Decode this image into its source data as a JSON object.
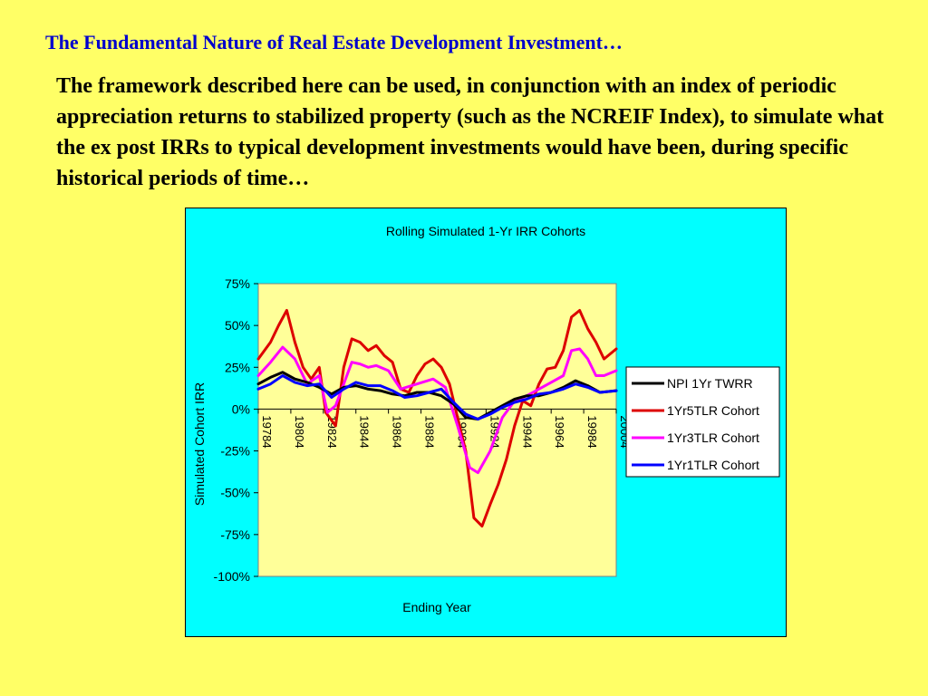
{
  "slide": {
    "title": "The Fundamental Nature of Real Estate Development Investment…",
    "body": "The framework described here can be used, in conjunction with an index of periodic appreciation returns to stabilized property (such as the NCREIF Index), to simulate what the ex post IRRs to typical development investments would have been, during specific historical periods of time…"
  },
  "colors": {
    "background": "#FFFF66",
    "title": "#0000CC",
    "chart_panel": "#00FFFF",
    "plot_area": "#FFFF99"
  },
  "chart_data": {
    "type": "line",
    "title": "Rolling Simulated 1-Yr IRR Cohorts",
    "xlabel": "Ending Year",
    "ylabel": "Simulated Cohort IRR",
    "ylim": [
      -1.0,
      0.75
    ],
    "y_ticks": [
      0.75,
      0.5,
      0.25,
      0.0,
      -0.25,
      -0.5,
      -0.75,
      -1.0
    ],
    "y_tick_labels": [
      "75%",
      "50%",
      "25%",
      "0%",
      "-25%",
      "-50%",
      "-75%",
      "-100%"
    ],
    "x_tick_labels": [
      "19784",
      "19804",
      "19824",
      "19844",
      "19864",
      "19884",
      "19904",
      "19924",
      "19944",
      "19964",
      "19984",
      "20004"
    ],
    "x_range": [
      1978.75,
      2000.75
    ],
    "legend_position": "right",
    "grid": false,
    "series": [
      {
        "name": "NPI 1Yr TWRR",
        "color": "#000000",
        "x": [
          1978.75,
          1979.5,
          1980.25,
          1981,
          1981.75,
          1982.5,
          1983.25,
          1984,
          1984.75,
          1985.5,
          1986.25,
          1987,
          1987.75,
          1988.5,
          1989.25,
          1990,
          1990.75,
          1991.5,
          1992.25,
          1993,
          1993.75,
          1994.5,
          1995.25,
          1996,
          1996.75,
          1997.5,
          1998.25,
          1999,
          1999.75,
          2000.75
        ],
        "y": [
          0.15,
          0.19,
          0.22,
          0.18,
          0.16,
          0.13,
          0.09,
          0.13,
          0.14,
          0.12,
          0.11,
          0.09,
          0.08,
          0.1,
          0.1,
          0.08,
          0.03,
          -0.05,
          -0.06,
          -0.02,
          0.02,
          0.06,
          0.08,
          0.08,
          0.1,
          0.13,
          0.17,
          0.14,
          0.1,
          0.11
        ]
      },
      {
        "name": "1Yr5TLR Cohort",
        "color": "#DD0000",
        "x": [
          1978.75,
          1979.5,
          1980,
          1980.5,
          1981,
          1981.5,
          1982,
          1982.5,
          1982.9,
          1983.5,
          1984,
          1984.5,
          1985,
          1985.5,
          1986,
          1986.5,
          1987,
          1987.5,
          1988,
          1988.5,
          1989,
          1989.5,
          1990,
          1990.5,
          1991,
          1991.5,
          1992,
          1992.5,
          1993,
          1993.5,
          1994,
          1994.5,
          1995,
          1995.5,
          1996,
          1996.5,
          1997,
          1997.5,
          1998,
          1998.5,
          1999,
          1999.5,
          2000,
          2000.75
        ],
        "y": [
          0.3,
          0.4,
          0.5,
          0.59,
          0.4,
          0.25,
          0.18,
          0.25,
          -0.02,
          -0.1,
          0.25,
          0.42,
          0.4,
          0.35,
          0.38,
          0.32,
          0.28,
          0.12,
          0.1,
          0.2,
          0.27,
          0.3,
          0.25,
          0.15,
          -0.05,
          -0.25,
          -0.65,
          -0.7,
          -0.57,
          -0.45,
          -0.3,
          -0.1,
          0.05,
          0.02,
          0.15,
          0.24,
          0.25,
          0.35,
          0.55,
          0.59,
          0.48,
          0.4,
          0.3,
          0.36
        ]
      },
      {
        "name": "1Yr3TLR Cohort",
        "color": "#FF00FF",
        "x": [
          1978.75,
          1979.5,
          1980.25,
          1981,
          1981.75,
          1982.5,
          1983,
          1983.5,
          1984,
          1984.5,
          1985,
          1985.5,
          1986,
          1986.75,
          1987.5,
          1988.5,
          1989.5,
          1990.25,
          1991,
          1991.75,
          1992.25,
          1993,
          1993.75,
          1994.5,
          1995.25,
          1996,
          1996.75,
          1997.5,
          1998,
          1998.5,
          1999,
          1999.5,
          2000,
          2000.75
        ],
        "y": [
          0.2,
          0.28,
          0.37,
          0.3,
          0.15,
          0.2,
          -0.02,
          0.02,
          0.15,
          0.28,
          0.27,
          0.25,
          0.26,
          0.23,
          0.12,
          0.15,
          0.18,
          0.13,
          -0.1,
          -0.35,
          -0.38,
          -0.25,
          -0.05,
          0.05,
          0.08,
          0.12,
          0.16,
          0.2,
          0.35,
          0.36,
          0.3,
          0.2,
          0.2,
          0.23
        ]
      },
      {
        "name": "1Yr1TLR Cohort",
        "color": "#0000FF",
        "x": [
          1978.75,
          1979.5,
          1980.25,
          1981,
          1981.75,
          1982.5,
          1983.25,
          1984,
          1984.75,
          1985.5,
          1986.25,
          1987,
          1987.75,
          1988.5,
          1989.25,
          1990,
          1990.75,
          1991.5,
          1992.25,
          1993,
          1993.75,
          1994.5,
          1995.25,
          1996,
          1996.75,
          1997.5,
          1998.25,
          1999,
          1999.75,
          2000.75
        ],
        "y": [
          0.12,
          0.15,
          0.2,
          0.16,
          0.14,
          0.15,
          0.07,
          0.12,
          0.16,
          0.14,
          0.14,
          0.11,
          0.07,
          0.08,
          0.1,
          0.12,
          0.04,
          -0.03,
          -0.06,
          -0.03,
          0.01,
          0.04,
          0.06,
          0.09,
          0.1,
          0.12,
          0.15,
          0.13,
          0.1,
          0.11
        ]
      }
    ]
  }
}
